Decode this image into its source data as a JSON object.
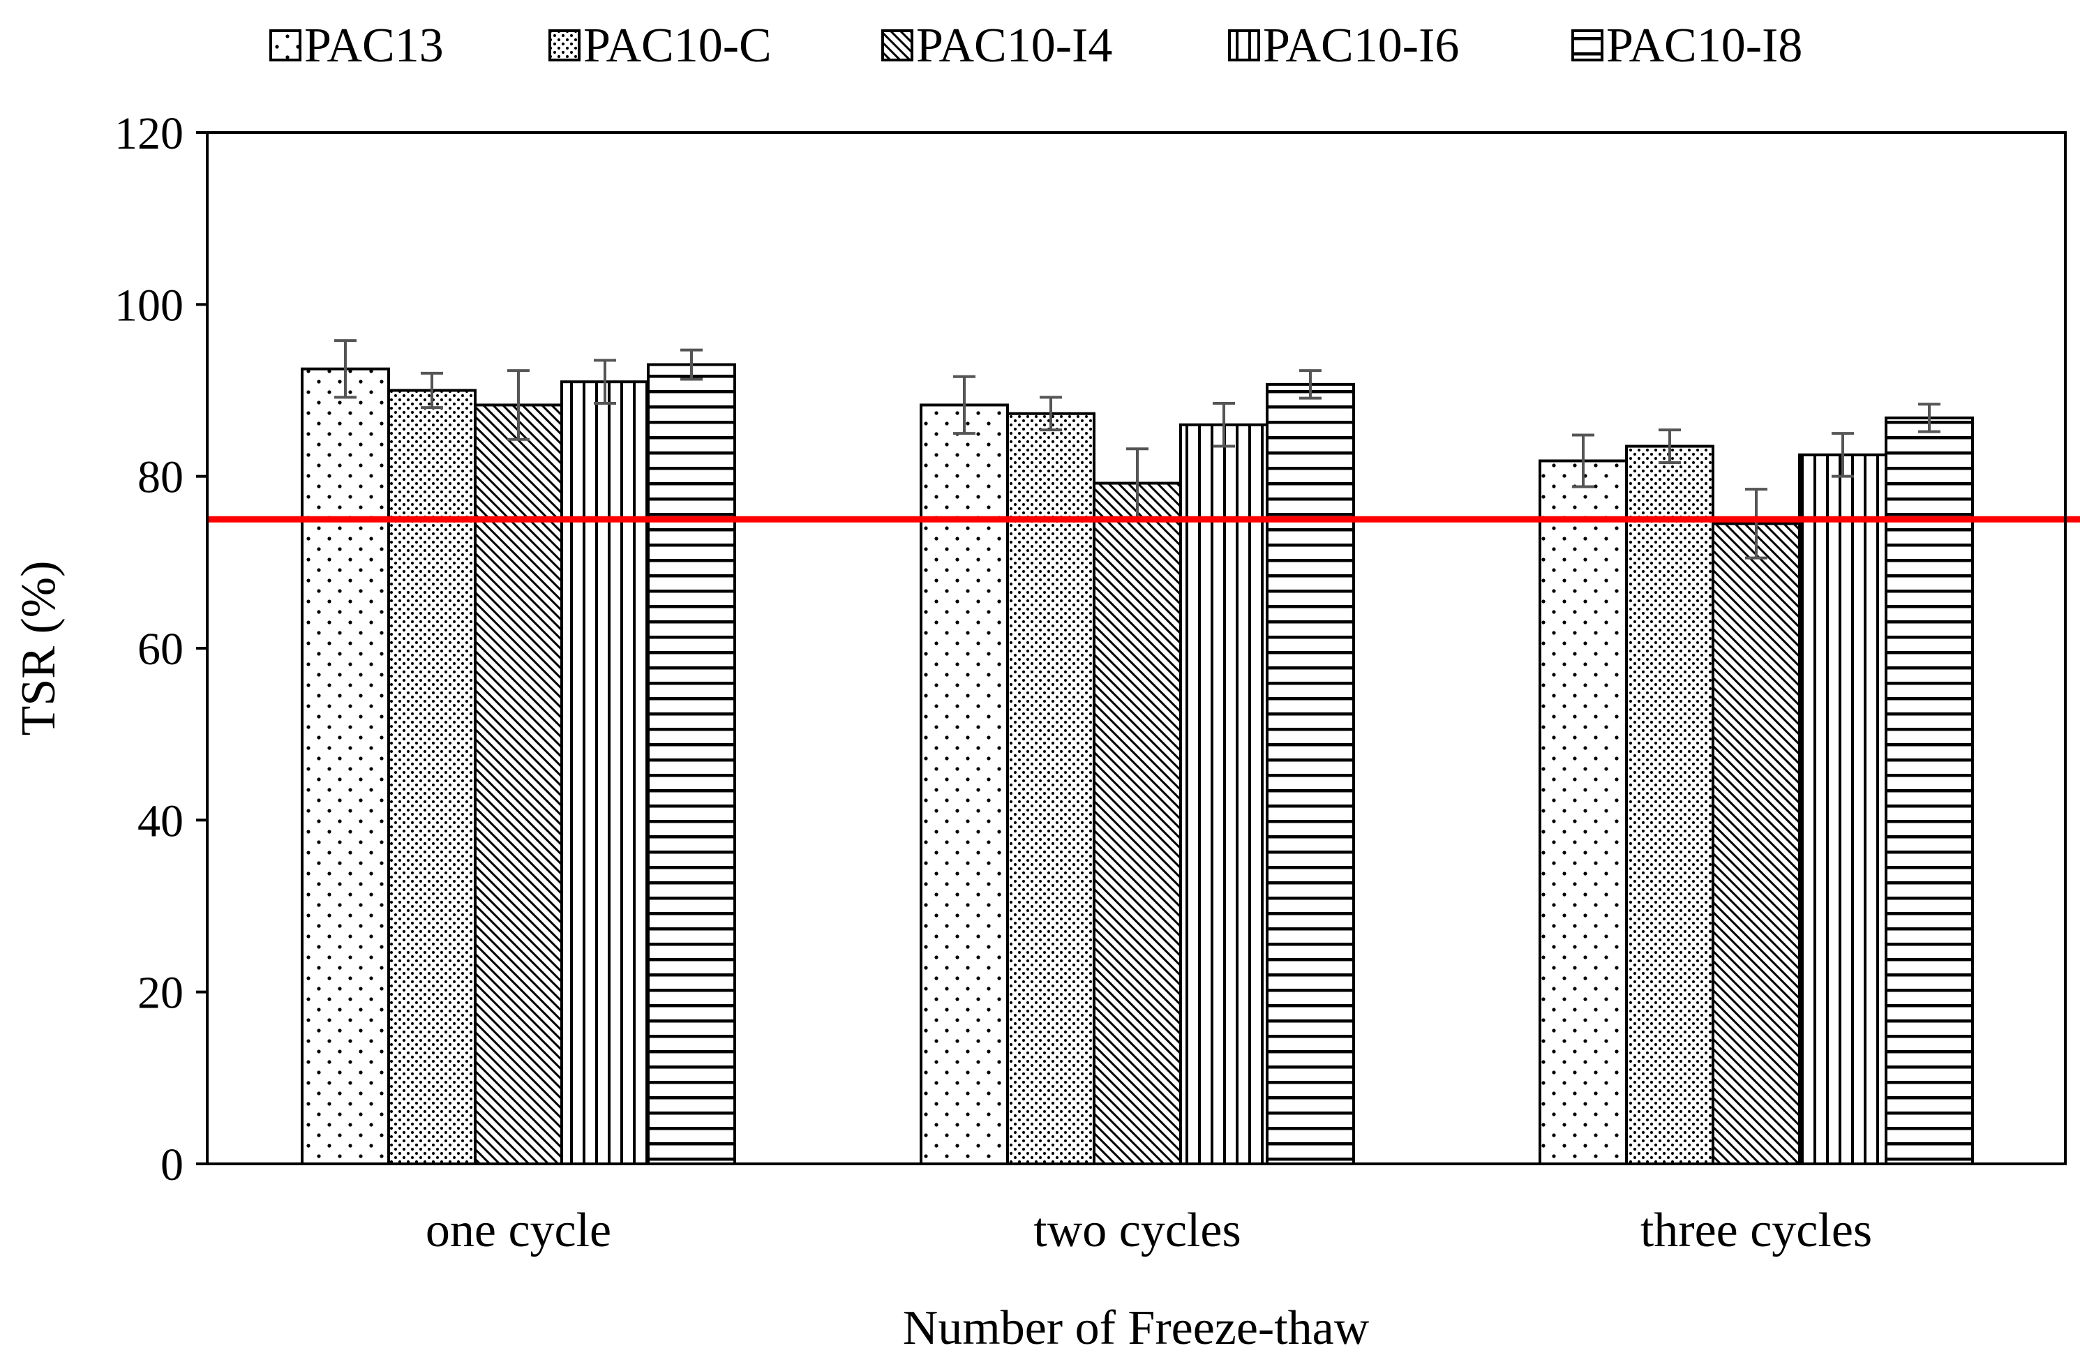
{
  "chart_data": {
    "type": "bar",
    "title": "",
    "xlabel": "Number of Freeze-thaw",
    "ylabel": "TSR (%)",
    "ylim": [
      0,
      120
    ],
    "yticks": [
      0,
      20,
      40,
      60,
      80,
      100,
      120
    ],
    "categories": [
      "one cycle",
      "two cycles",
      "three cycles"
    ],
    "legend_position": "top",
    "series": [
      {
        "name": "PAC13",
        "pattern": "sparse-dots",
        "values": [
          92.5,
          88.3,
          81.8
        ],
        "errors": [
          3.3,
          3.3,
          3.0
        ]
      },
      {
        "name": "PAC10-C",
        "pattern": "dense-dots",
        "values": [
          90.0,
          87.3,
          83.5
        ],
        "errors": [
          2.0,
          1.9,
          1.9
        ]
      },
      {
        "name": "PAC10-I4",
        "pattern": "diagonal",
        "values": [
          88.3,
          79.2,
          74.5
        ],
        "errors": [
          4.0,
          4.0,
          4.0
        ]
      },
      {
        "name": "PAC10-I6",
        "pattern": "vertical",
        "values": [
          91.0,
          86.0,
          82.5
        ],
        "errors": [
          2.5,
          2.5,
          2.5
        ]
      },
      {
        "name": "PAC10-I8",
        "pattern": "horizontal",
        "values": [
          93.0,
          90.7,
          86.8
        ],
        "errors": [
          1.7,
          1.6,
          1.6
        ]
      }
    ],
    "reference_line": {
      "value": 75,
      "color": "#ff0000"
    },
    "grid": false
  }
}
